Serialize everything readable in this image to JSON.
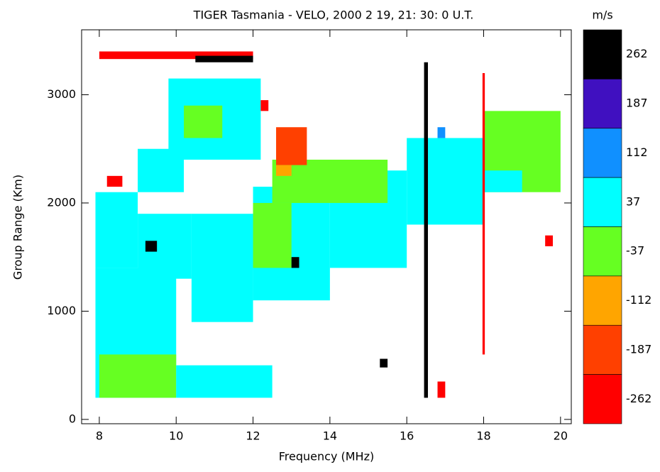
{
  "chart_data": {
    "type": "heatmap",
    "title": "TIGER Tasmania - VELO, 2000 2 19, 21: 30: 0 U.T.",
    "x_label": "Frequency (MHz)",
    "y_label": "Group Range (Km)",
    "xlim": [
      7.54,
      20.28
    ],
    "xticks": [
      8,
      10,
      12,
      14,
      16,
      18,
      20
    ],
    "ylim": [
      -40,
      3600
    ],
    "yticks": [
      0,
      1000,
      2000,
      3000
    ],
    "colorbar": {
      "title": "m/s",
      "ticks": [
        262,
        187,
        112,
        37,
        -37,
        -112,
        -187,
        -262
      ],
      "colors": [
        "#000000",
        "#4010c0",
        "#1090ff",
        "#00ffff",
        "#66ff22",
        "#ffa500",
        "#ff4000",
        "#ff0000"
      ]
    },
    "cells": [
      {
        "x": [
          7.9,
          10.0
        ],
        "y": [
          200,
          1400
        ],
        "value": 20
      },
      {
        "x": [
          7.9,
          9.0
        ],
        "y": [
          1400,
          2100
        ],
        "value": 20
      },
      {
        "x": [
          9.0,
          10.4
        ],
        "y": [
          1300,
          1900
        ],
        "value": 20
      },
      {
        "x": [
          10.4,
          12.0
        ],
        "y": [
          900,
          1900
        ],
        "value": 20
      },
      {
        "x": [
          12.0,
          14.0
        ],
        "y": [
          1100,
          2150
        ],
        "value": 20
      },
      {
        "x": [
          14.0,
          16.0
        ],
        "y": [
          1400,
          2300
        ],
        "value": 20
      },
      {
        "x": [
          16.0,
          18.0
        ],
        "y": [
          1800,
          2600
        ],
        "value": 20
      },
      {
        "x": [
          18.0,
          20.0
        ],
        "y": [
          2100,
          2850
        ],
        "value": -20
      },
      {
        "x": [
          18.0,
          19.0
        ],
        "y": [
          2100,
          2300
        ],
        "value": 20
      },
      {
        "x": [
          12.5,
          15.5
        ],
        "y": [
          2000,
          2400
        ],
        "value": -20
      },
      {
        "x": [
          9.8,
          12.2
        ],
        "y": [
          2400,
          3150
        ],
        "value": 20
      },
      {
        "x": [
          10.2,
          11.2
        ],
        "y": [
          2600,
          2900
        ],
        "value": -20
      },
      {
        "x": [
          9.0,
          10.2
        ],
        "y": [
          2100,
          2500
        ],
        "value": 20
      },
      {
        "x": [
          12.6,
          13.4
        ],
        "y": [
          2350,
          2700
        ],
        "value": -200
      },
      {
        "x": [
          12.6,
          13.0
        ],
        "y": [
          2250,
          2350
        ],
        "value": -120
      },
      {
        "x": [
          8.0,
          10.0
        ],
        "y": [
          200,
          600
        ],
        "value": -20
      },
      {
        "x": [
          10.0,
          12.5
        ],
        "y": [
          200,
          500
        ],
        "value": 20
      },
      {
        "x": [
          12.0,
          13.0
        ],
        "y": [
          1400,
          2000
        ],
        "value": -20
      },
      {
        "x": [
          8.2,
          8.6
        ],
        "y": [
          2150,
          2250
        ],
        "value": -280
      },
      {
        "x": [
          16.45,
          16.55
        ],
        "y": [
          200,
          3300
        ],
        "value": 280
      },
      {
        "x": [
          17.97,
          18.03
        ],
        "y": [
          600,
          3200
        ],
        "value": -280
      },
      {
        "x": [
          8.0,
          12.0
        ],
        "y": [
          3330,
          3400
        ],
        "value": -280
      },
      {
        "x": [
          10.5,
          12.0
        ],
        "y": [
          3300,
          3360
        ],
        "value": 280
      },
      {
        "x": [
          9.2,
          9.5
        ],
        "y": [
          1550,
          1650
        ],
        "value": 280
      },
      {
        "x": [
          13.0,
          13.2
        ],
        "y": [
          1400,
          1500
        ],
        "value": 280
      },
      {
        "x": [
          15.3,
          15.5
        ],
        "y": [
          480,
          560
        ],
        "value": 280
      },
      {
        "x": [
          16.8,
          17.0
        ],
        "y": [
          200,
          350
        ],
        "value": -280
      },
      {
        "x": [
          12.2,
          12.4
        ],
        "y": [
          2850,
          2950
        ],
        "value": -280
      },
      {
        "x": [
          16.8,
          17.0
        ],
        "y": [
          2600,
          2700
        ],
        "value": 120
      },
      {
        "x": [
          19.6,
          19.8
        ],
        "y": [
          1600,
          1700
        ],
        "value": -280
      }
    ]
  }
}
